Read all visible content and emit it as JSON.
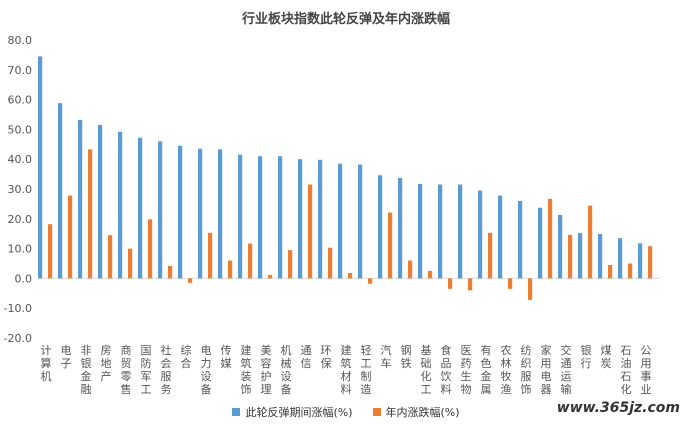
{
  "chart_data": {
    "type": "bar",
    "title": "行业板块指数此轮反弹及年内涨跌幅",
    "categories": [
      "计算机",
      "电子",
      "非银金融",
      "房地产",
      "商贸零售",
      "国防军工",
      "社会服务",
      "综合",
      "电力设备",
      "传媒",
      "建筑装饰",
      "美容护理",
      "机械设备",
      "通信",
      "环保",
      "建筑材料",
      "轻工制造",
      "汽车",
      "钢铁",
      "基础化工",
      "食品饮料",
      "医药生物",
      "有色金属",
      "农林牧渔",
      "纺织服饰",
      "家用电器",
      "交通运输",
      "银行",
      "煤炭",
      "石油石化",
      "公用事业"
    ],
    "series": [
      {
        "name": "此轮反弹期间涨幅(%)",
        "color": "#5b9bd5",
        "values": [
          74.5,
          58.8,
          53.2,
          51.5,
          49.2,
          47.2,
          46.0,
          44.5,
          43.5,
          43.3,
          41.5,
          41.0,
          41.0,
          40.0,
          39.8,
          38.5,
          38.2,
          34.6,
          33.7,
          31.7,
          31.5,
          31.5,
          29.5,
          27.8,
          26.0,
          23.7,
          21.3,
          15.2,
          14.9,
          13.5,
          11.8
        ]
      },
      {
        "name": "年内涨跌幅(%)",
        "color": "#ed7d31",
        "values": [
          18.2,
          27.8,
          43.3,
          14.5,
          10.0,
          19.8,
          4.2,
          -1.5,
          15.3,
          6.0,
          11.7,
          1.2,
          9.5,
          31.5,
          10.3,
          1.8,
          -1.8,
          22.1,
          6.0,
          2.5,
          -3.5,
          -4.0,
          15.3,
          -3.5,
          -7.2,
          26.7,
          14.6,
          24.4,
          4.5,
          5.0,
          10.8
        ]
      }
    ],
    "ylim": [
      -20,
      80
    ],
    "yticks": [
      "-20.0",
      "-10.0",
      "0.0",
      "10.0",
      "20.0",
      "30.0",
      "40.0",
      "50.0",
      "60.0",
      "70.0",
      "80.0"
    ],
    "ytick_values": [
      -20,
      -10,
      0,
      10,
      20,
      30,
      40,
      50,
      60,
      70,
      80
    ],
    "grid": false,
    "legend_position": "bottom"
  },
  "watermark": "www.365jz.com"
}
